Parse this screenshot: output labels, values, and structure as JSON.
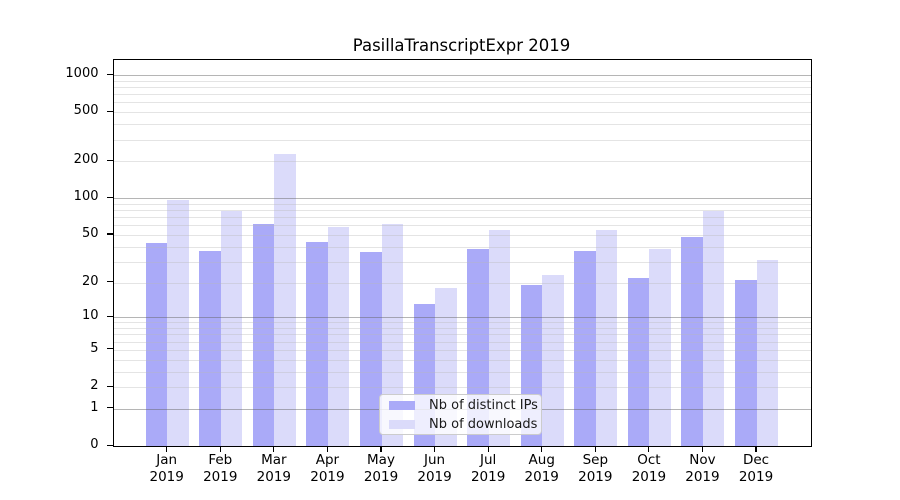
{
  "chart_data": {
    "type": "bar",
    "title": "PasillaTranscriptExpr 2019",
    "categories": [
      "Jan",
      "Feb",
      "Mar",
      "Apr",
      "May",
      "Jun",
      "Jul",
      "Aug",
      "Sep",
      "Oct",
      "Nov",
      "Dec"
    ],
    "category_year": "2019",
    "series": [
      {
        "name": "Nb of distinct IPs",
        "color": "#aaaaf8",
        "values": [
          43,
          37,
          62,
          44,
          36,
          13,
          38,
          19,
          37,
          22,
          48,
          21
        ]
      },
      {
        "name": "Nb of downloads",
        "color": "#dbdbfa",
        "values": [
          97,
          78,
          230,
          58,
          62,
          18,
          55,
          23,
          55,
          38,
          79,
          31
        ]
      }
    ],
    "y_ticks": [
      0,
      1,
      2,
      5,
      10,
      20,
      50,
      100,
      200,
      500,
      1000
    ],
    "y_scale": "log1p",
    "ylim": [
      0,
      1300
    ],
    "grid": "on",
    "grid_major_at_powers_of_ten": true,
    "legend_position": "bottom-center-inside",
    "legend_bg": "rgba(255,255,255,0.8)",
    "legend_border_color": "#cccccc",
    "major_grid_color": "#b7b7b7",
    "minor_grid_color": "#e4e4e4",
    "axis_color": "#000000"
  }
}
